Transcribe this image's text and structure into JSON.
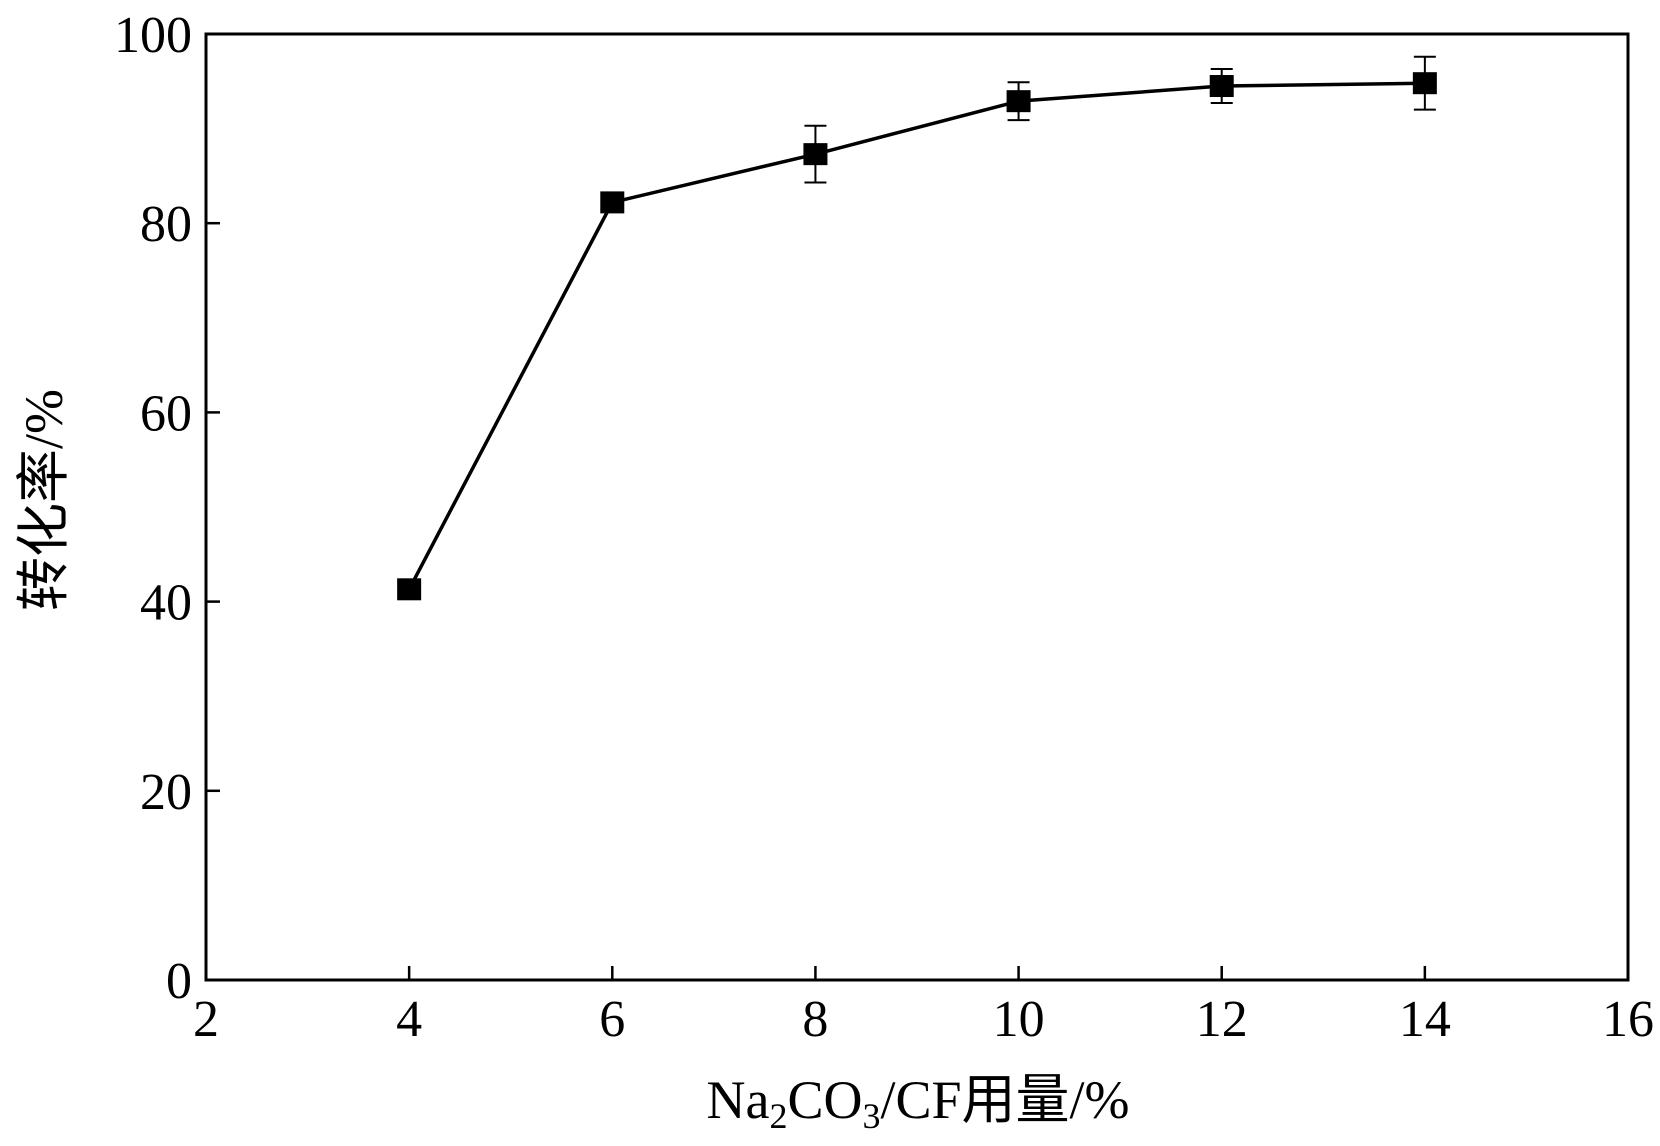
{
  "chart_data": {
    "type": "line",
    "title": "",
    "xlabel": "Na2CO3/CF用量/%",
    "xlabel_parts": {
      "prefix": "Na",
      "sub1": "2",
      "mid": "CO",
      "sub2": "3",
      "suffix": "/CF用量/%"
    },
    "ylabel": "转化率/%",
    "xlim": [
      2,
      16
    ],
    "ylim": [
      0,
      100
    ],
    "xticks": [
      2,
      4,
      6,
      8,
      10,
      12,
      14,
      16
    ],
    "yticks": [
      0,
      20,
      40,
      60,
      80,
      100
    ],
    "grid": false,
    "legend": "none",
    "series": [
      {
        "marker": "square",
        "color": "#000000",
        "x": [
          4,
          6,
          8,
          10,
          12,
          14
        ],
        "y": [
          41.3,
          82.2,
          87.3,
          92.9,
          94.5,
          94.8
        ],
        "error": [
          0,
          0,
          3.0,
          2.0,
          1.8,
          2.8
        ]
      }
    ]
  }
}
